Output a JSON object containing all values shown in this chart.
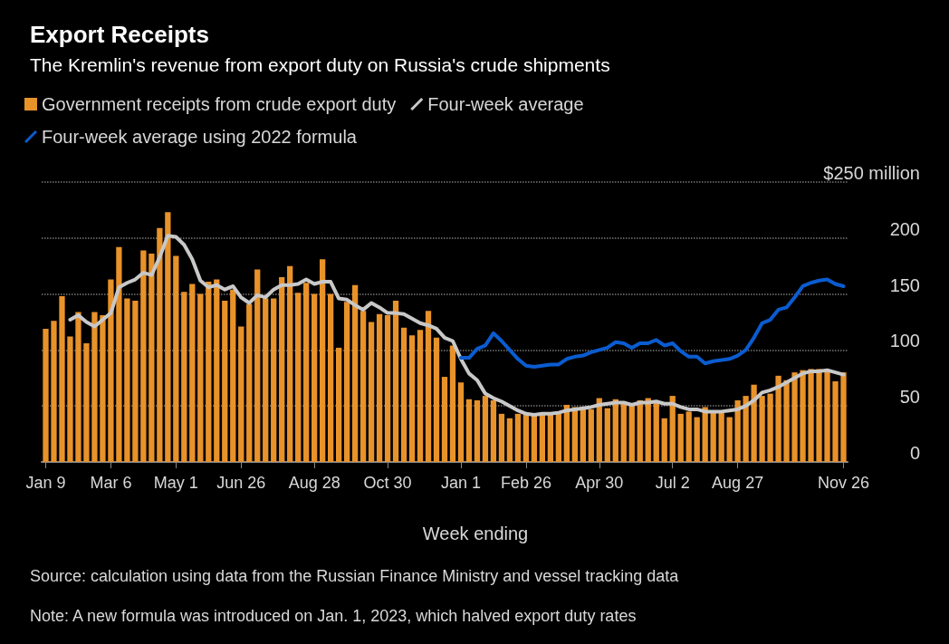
{
  "chart_data": {
    "type": "bar",
    "title": "Export Receipts",
    "subtitle": "The Kremlin's revenue from export duty on Russia's crude shipments",
    "xlabel": "Week ending",
    "categories": [
      "Jan 9",
      null,
      null,
      null,
      null,
      null,
      null,
      null,
      "Mar 6",
      null,
      null,
      null,
      null,
      null,
      null,
      null,
      "May 1",
      null,
      null,
      null,
      null,
      null,
      null,
      null,
      "Jun 26",
      null,
      null,
      null,
      null,
      null,
      null,
      null,
      null,
      "Aug 28",
      null,
      null,
      null,
      null,
      null,
      null,
      null,
      null,
      "Oct 30",
      null,
      null,
      null,
      null,
      null,
      null,
      null,
      null,
      "Jan 1",
      null,
      null,
      null,
      null,
      null,
      null,
      null,
      "Feb 26",
      null,
      null,
      null,
      null,
      null,
      null,
      null,
      null,
      "Apr 30",
      null,
      null,
      null,
      null,
      null,
      null,
      null,
      null,
      "Jul 2",
      null,
      null,
      null,
      null,
      null,
      null,
      null,
      "Aug 27",
      null,
      null,
      null,
      null,
      null,
      null,
      null,
      null,
      null,
      null,
      null,
      null,
      "Nov 26"
    ],
    "series": [
      {
        "name": "Government receipts from crude export duty",
        "color": "#e8922a",
        "values": [
          119,
          126,
          148,
          112,
          134,
          106,
          134,
          131,
          163,
          192,
          146,
          144,
          189,
          186,
          209,
          223,
          184,
          152,
          159,
          150,
          161,
          163,
          144,
          154,
          121,
          141,
          172,
          146,
          146,
          165,
          175,
          151,
          160,
          150,
          181,
          150,
          102,
          143,
          158,
          135,
          125,
          132,
          131,
          144,
          120,
          113,
          118,
          135,
          111,
          76,
          104,
          71,
          56,
          55,
          59,
          55,
          43,
          39,
          43,
          42,
          42,
          42,
          42,
          43,
          51,
          49,
          49,
          47,
          57,
          48,
          56,
          53,
          50,
          55,
          57,
          54,
          39,
          59,
          43,
          45,
          40,
          49,
          44,
          44,
          40,
          55,
          59,
          69,
          59,
          61,
          77,
          73,
          80,
          82,
          83,
          83,
          82,
          72,
          80
        ]
      },
      {
        "name": "Four-week average",
        "type": "line",
        "color": "#c8c8c8",
        "values": [
          null,
          null,
          null,
          127,
          131,
          125,
          121,
          127,
          133,
          156,
          160,
          163,
          169,
          167,
          183,
          202,
          201,
          194,
          181,
          162,
          156,
          158,
          154,
          157,
          147,
          142,
          149,
          147,
          154,
          158,
          158,
          159,
          163,
          159,
          161,
          161,
          146,
          145,
          140,
          136,
          142,
          138,
          133,
          133,
          132,
          128,
          124,
          122,
          119,
          111,
          108,
          92,
          79,
          73,
          61,
          57,
          54,
          50,
          46,
          43,
          42,
          43,
          43,
          44,
          46,
          47,
          48,
          49,
          51,
          52,
          53,
          53,
          51,
          53,
          53,
          54,
          52,
          52,
          49,
          47,
          47,
          45,
          45,
          45,
          46,
          47,
          50,
          55,
          62,
          64,
          67,
          71,
          75,
          79,
          81,
          81,
          82,
          80,
          78
        ]
      },
      {
        "name": "Four-week average using 2022 formula",
        "type": "line",
        "color": "#0a5cd0",
        "values": [
          null,
          null,
          null,
          null,
          null,
          null,
          null,
          null,
          null,
          null,
          null,
          null,
          null,
          null,
          null,
          null,
          null,
          null,
          null,
          null,
          null,
          null,
          null,
          null,
          null,
          null,
          null,
          null,
          null,
          null,
          null,
          null,
          null,
          null,
          null,
          null,
          null,
          null,
          null,
          null,
          null,
          null,
          null,
          null,
          null,
          null,
          null,
          null,
          null,
          null,
          null,
          93,
          93,
          101,
          104,
          115,
          108,
          100,
          92,
          86,
          85,
          86,
          87,
          87,
          92,
          94,
          95,
          98,
          100,
          102,
          107,
          106,
          102,
          106,
          106,
          109,
          104,
          106,
          99,
          94,
          94,
          88,
          90,
          91,
          92,
          95,
          100,
          111,
          124,
          127,
          136,
          138,
          147,
          157,
          160,
          162,
          163,
          159,
          157
        ]
      }
    ],
    "ylim": [
      0,
      250
    ],
    "yticks": [
      0,
      50,
      100,
      150,
      200,
      {
        "value": 250,
        "label": "$250 million"
      }
    ],
    "grid": "y",
    "legend": "top left",
    "annotations": [
      "Source: calculation using data from the Russian Finance Ministry and vessel tracking data",
      "Note: A new formula was introduced on Jan. 1, 2023, which halved export duty rates"
    ]
  }
}
